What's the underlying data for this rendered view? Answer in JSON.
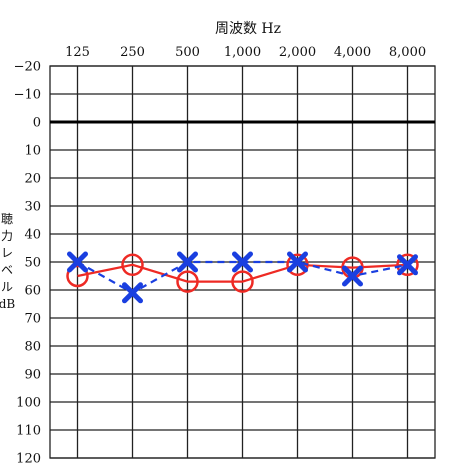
{
  "chart_data": {
    "type": "line",
    "title": "周波数 Hz",
    "x_tick_labels": [
      "125",
      "250",
      "500",
      "1,000",
      "2,000",
      "4,000",
      "8,000"
    ],
    "y_tick_labels": [
      "−20",
      "−10",
      "0",
      "10",
      "20",
      "30",
      "40",
      "50",
      "60",
      "70",
      "80",
      "90",
      "100",
      "110",
      "120"
    ],
    "ylabel_chars": [
      "聴",
      "力",
      "レ",
      "ベ",
      "ル",
      "dB"
    ],
    "ylim": [
      -20,
      120
    ],
    "y_inverted": true,
    "grid": true,
    "series": [
      {
        "marker": "circle",
        "line_style": "solid",
        "color": "#ee2a24",
        "values": [
          55,
          51,
          57,
          57,
          51,
          52,
          51
        ]
      },
      {
        "marker": "cross",
        "line_style": "dashed",
        "color": "#1a3fe0",
        "values": [
          50,
          61,
          50,
          50,
          50,
          55,
          51
        ]
      }
    ]
  }
}
